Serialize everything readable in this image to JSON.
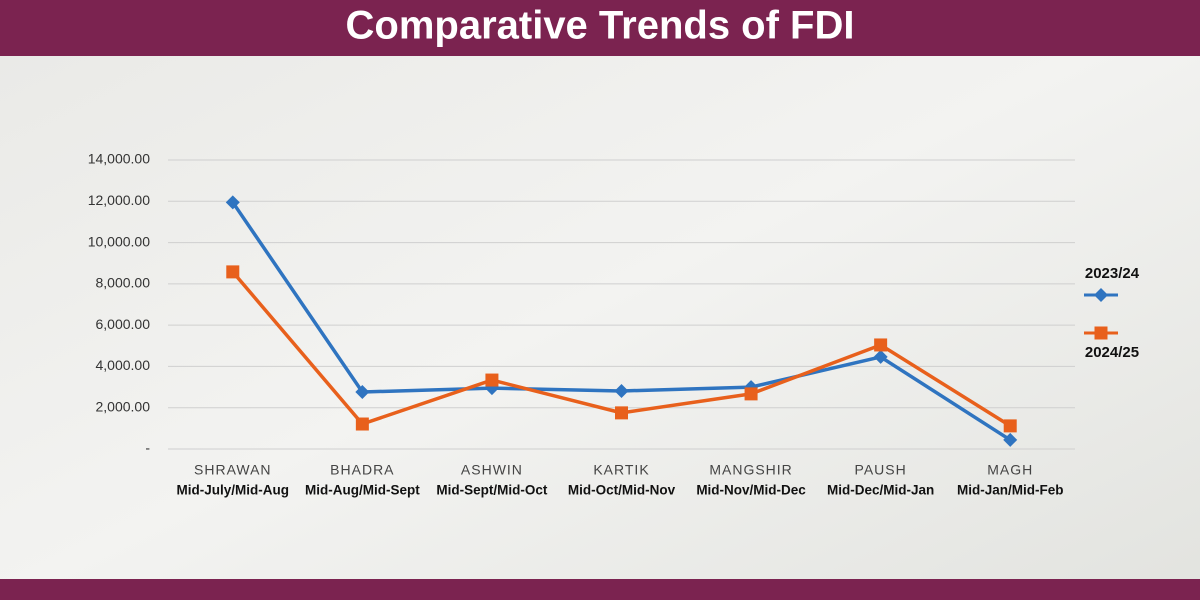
{
  "chart_data": {
    "type": "line",
    "title": "Comparative Trends of FDI",
    "categories": [
      "SHRAWAN",
      "BHADRA",
      "ASHWIN",
      "KARTIK",
      "MANGSHIR",
      "PAUSH",
      "MAGH"
    ],
    "category_periods": [
      "Mid-July/Mid-Aug",
      "Mid-Aug/Mid-Sept",
      "Mid-Sept/Mid-Oct",
      "Mid-Oct/Mid-Nov",
      "Mid-Nov/Mid-Dec",
      "Mid-Dec/Mid-Jan",
      "Mid-Jan/Mid-Feb"
    ],
    "series": [
      {
        "name": "2023/24",
        "color": "#2f74c0",
        "marker": "diamond",
        "values": [
          11950,
          2760,
          2950,
          2810,
          3000,
          4460,
          440
        ]
      },
      {
        "name": "2024/25",
        "color": "#e8601c",
        "marker": "square",
        "values": [
          8580,
          1210,
          3340,
          1750,
          2670,
          5040,
          1120
        ]
      }
    ],
    "ylim": [
      0,
      14000
    ],
    "yticks": [
      {
        "value": 0,
        "label": "-"
      },
      {
        "value": 2000,
        "label": "2,000.00"
      },
      {
        "value": 4000,
        "label": "4,000.00"
      },
      {
        "value": 6000,
        "label": "6,000.00"
      },
      {
        "value": 8000,
        "label": "8,000.00"
      },
      {
        "value": 10000,
        "label": "10,000.00"
      },
      {
        "value": 12000,
        "label": "12,000.00"
      },
      {
        "value": 14000,
        "label": "14,000.00"
      }
    ],
    "grid": true,
    "legend": "right"
  }
}
